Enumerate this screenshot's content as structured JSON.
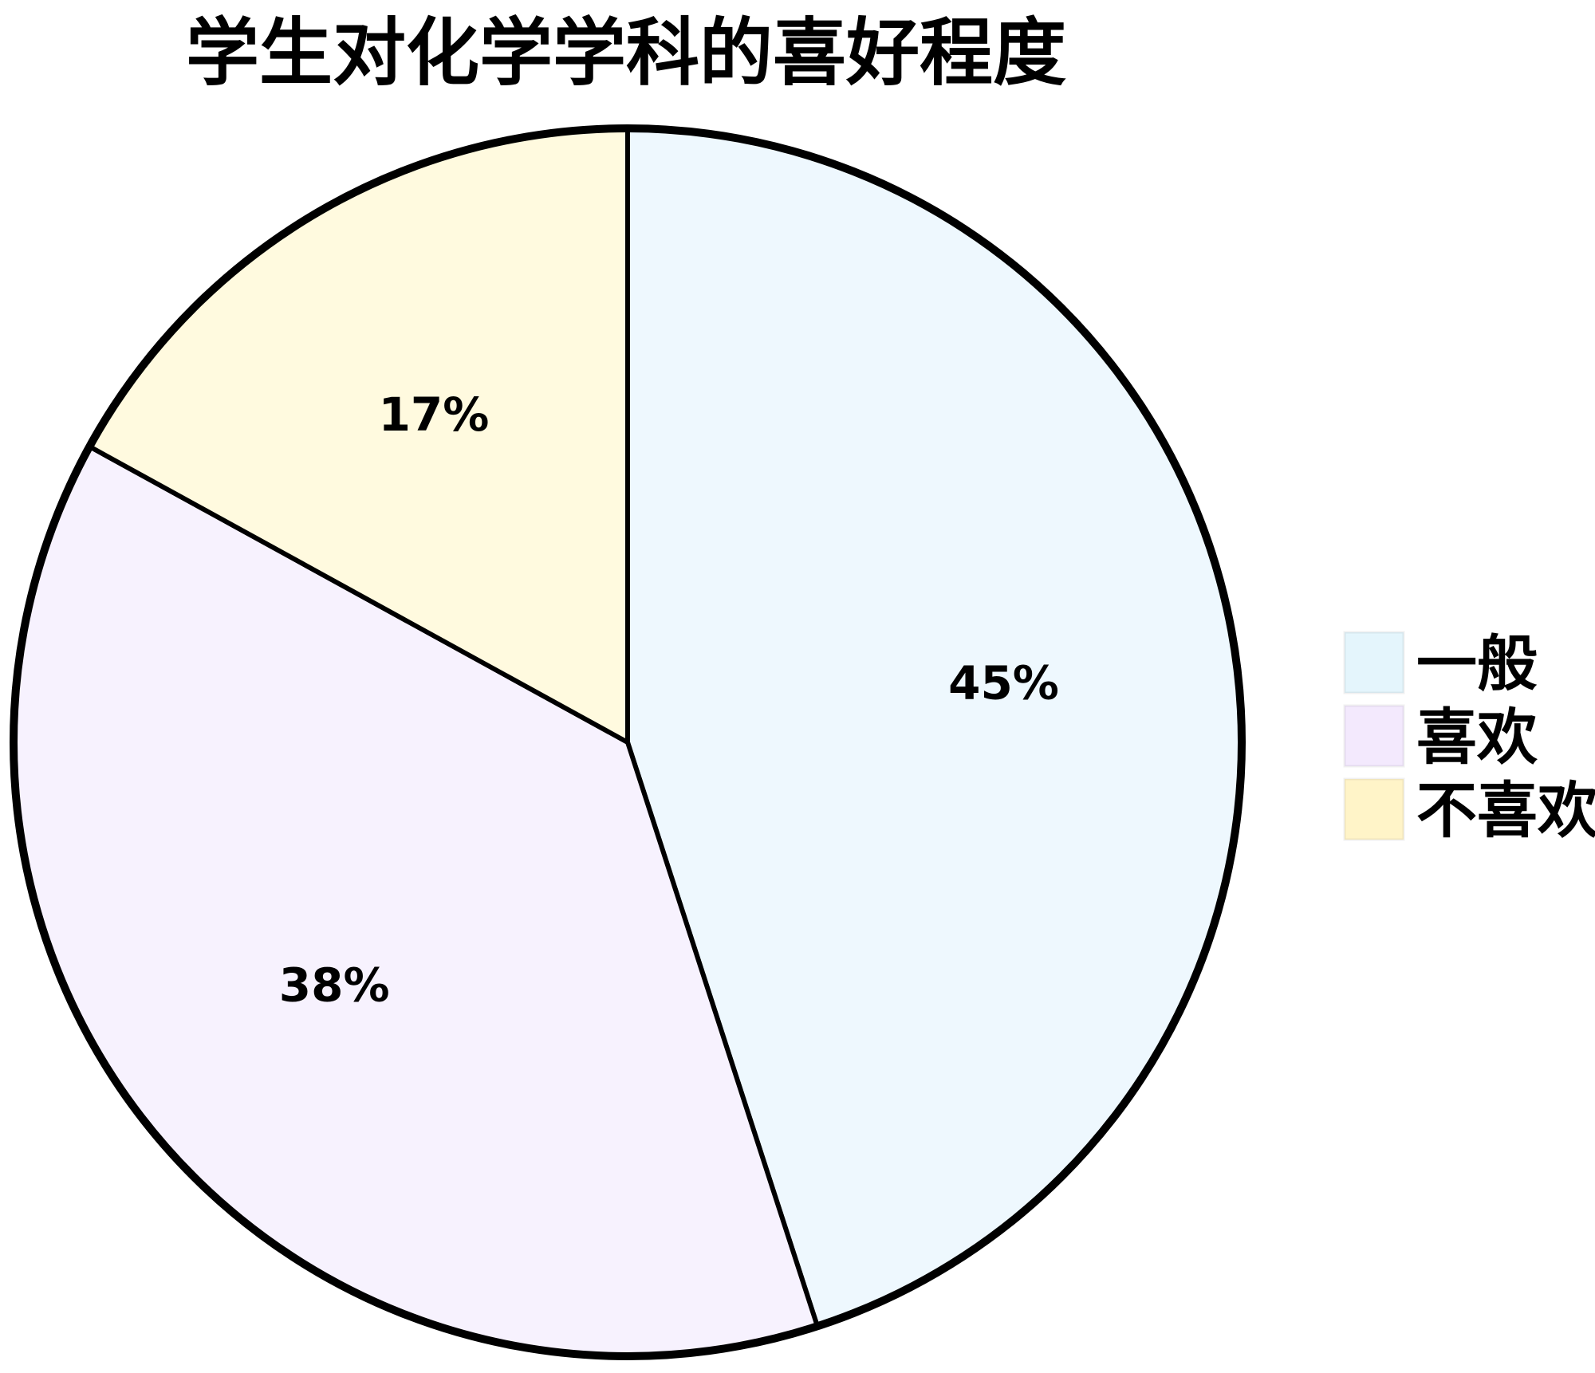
{
  "chart_data": {
    "type": "pie",
    "title": "学生对化学学科的喜好程度",
    "categories": [
      "一般",
      "喜欢",
      "不喜欢"
    ],
    "values": [
      45,
      38,
      17
    ],
    "labels": [
      "45%",
      "38%",
      "17%"
    ],
    "colors": [
      "#eef8fe",
      "#f7f2fe",
      "#fffadf"
    ],
    "legend_colors": [
      "#e4f5fc",
      "#f3e9fd",
      "#fff4c8"
    ],
    "start": "top, clockwise",
    "legend_position": "right"
  }
}
